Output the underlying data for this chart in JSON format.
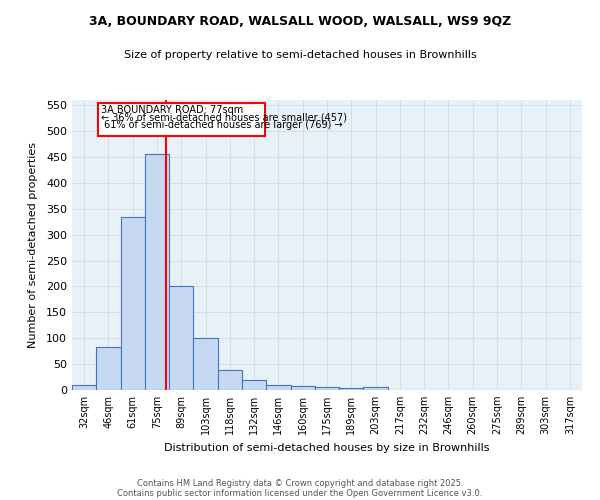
{
  "title1": "3A, BOUNDARY ROAD, WALSALL WOOD, WALSALL, WS9 9QZ",
  "title2": "Size of property relative to semi-detached houses in Brownhills",
  "xlabel": "Distribution of semi-detached houses by size in Brownhills",
  "ylabel": "Number of semi-detached properties",
  "categories": [
    "32sqm",
    "46sqm",
    "61sqm",
    "75sqm",
    "89sqm",
    "103sqm",
    "118sqm",
    "132sqm",
    "146sqm",
    "160sqm",
    "175sqm",
    "189sqm",
    "203sqm",
    "217sqm",
    "232sqm",
    "246sqm",
    "260sqm",
    "275sqm",
    "289sqm",
    "303sqm",
    "317sqm"
  ],
  "values": [
    10,
    83,
    335,
    455,
    200,
    100,
    38,
    20,
    10,
    8,
    5,
    3,
    5,
    0,
    0,
    0,
    0,
    0,
    0,
    0,
    0
  ],
  "bar_color": "#c6d9f1",
  "bar_edge_color": "#4472c4",
  "grid_color": "#c8d8e8",
  "background_color": "#e8f0f8",
  "red_line_x": 3.35,
  "property_sqm": 77,
  "pct_smaller": 36,
  "count_smaller": 457,
  "pct_larger": 61,
  "count_larger": 769,
  "ylim": [
    0,
    560
  ],
  "yticks": [
    0,
    50,
    100,
    150,
    200,
    250,
    300,
    350,
    400,
    450,
    500,
    550
  ],
  "annotation_label": "3A BOUNDARY ROAD: 77sqm",
  "footer1": "Contains HM Land Registry data © Crown copyright and database right 2025.",
  "footer2": "Contains public sector information licensed under the Open Government Licence v3.0."
}
